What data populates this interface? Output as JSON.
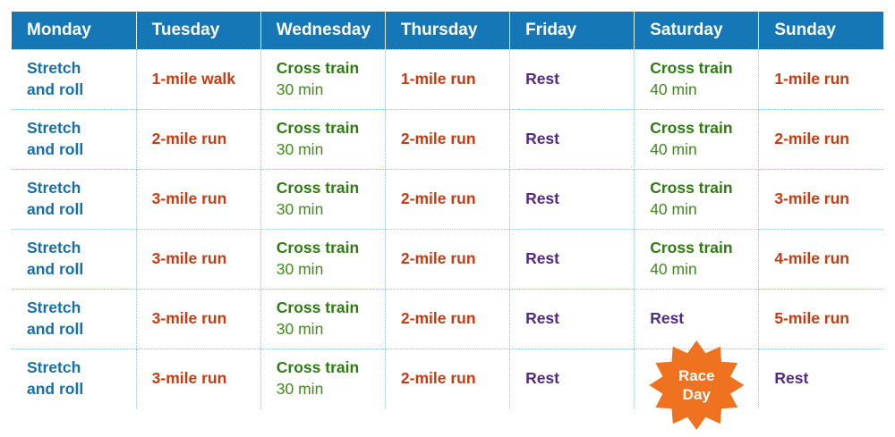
{
  "colors": {
    "header_bg": "#1577b5",
    "header_text": "#ffffff",
    "grid": "#8fc5ea",
    "stretch": "#1470ad",
    "run": "#c83a10",
    "cross": "#2e7d12",
    "cross_sub": "#3f8a1a",
    "rest": "#522a86",
    "star": "#ee7220",
    "star_text": "#ffffff"
  },
  "schedule": {
    "days": [
      "Monday",
      "Tuesday",
      "Wednesday",
      "Thursday",
      "Friday",
      "Saturday",
      "Sunday"
    ],
    "weeks": [
      {
        "cells": [
          {
            "type": "stretch",
            "lines": [
              "Stretch",
              "and roll"
            ]
          },
          {
            "type": "walk",
            "lines": [
              "1-mile walk"
            ]
          },
          {
            "type": "cross",
            "lines": [
              "Cross train",
              "30 min"
            ]
          },
          {
            "type": "run",
            "lines": [
              "1-mile run"
            ]
          },
          {
            "type": "rest",
            "lines": [
              "Rest"
            ]
          },
          {
            "type": "cross",
            "lines": [
              "Cross train",
              "40 min"
            ]
          },
          {
            "type": "run",
            "lines": [
              "1-mile run"
            ]
          }
        ]
      },
      {
        "cells": [
          {
            "type": "stretch",
            "lines": [
              "Stretch",
              "and roll"
            ]
          },
          {
            "type": "run",
            "lines": [
              "2-mile run"
            ]
          },
          {
            "type": "cross",
            "lines": [
              "Cross train",
              "30 min"
            ]
          },
          {
            "type": "run",
            "lines": [
              "2-mile run"
            ]
          },
          {
            "type": "rest",
            "lines": [
              "Rest"
            ]
          },
          {
            "type": "cross",
            "lines": [
              "Cross train",
              "40 min"
            ]
          },
          {
            "type": "run",
            "lines": [
              "2-mile run"
            ]
          }
        ]
      },
      {
        "cells": [
          {
            "type": "stretch",
            "lines": [
              "Stretch",
              "and roll"
            ]
          },
          {
            "type": "run",
            "lines": [
              "3-mile run"
            ]
          },
          {
            "type": "cross",
            "lines": [
              "Cross train",
              "30 min"
            ]
          },
          {
            "type": "run",
            "lines": [
              "2-mile run"
            ]
          },
          {
            "type": "rest",
            "lines": [
              "Rest"
            ]
          },
          {
            "type": "cross",
            "lines": [
              "Cross train",
              "40 min"
            ]
          },
          {
            "type": "run",
            "lines": [
              "3-mile run"
            ]
          }
        ]
      },
      {
        "cells": [
          {
            "type": "stretch",
            "lines": [
              "Stretch",
              "and roll"
            ]
          },
          {
            "type": "run",
            "lines": [
              "3-mile run"
            ]
          },
          {
            "type": "cross",
            "lines": [
              "Cross train",
              "30 min"
            ]
          },
          {
            "type": "run",
            "lines": [
              "2-mile run"
            ]
          },
          {
            "type": "rest",
            "lines": [
              "Rest"
            ]
          },
          {
            "type": "cross",
            "lines": [
              "Cross train",
              "40 min"
            ]
          },
          {
            "type": "run",
            "lines": [
              "4-mile run"
            ]
          }
        ]
      },
      {
        "cells": [
          {
            "type": "stretch",
            "lines": [
              "Stretch",
              "and roll"
            ]
          },
          {
            "type": "run",
            "lines": [
              "3-mile run"
            ]
          },
          {
            "type": "cross",
            "lines": [
              "Cross train",
              "30 min"
            ]
          },
          {
            "type": "run",
            "lines": [
              "2-mile run"
            ]
          },
          {
            "type": "rest",
            "lines": [
              "Rest"
            ]
          },
          {
            "type": "rest",
            "lines": [
              "Rest"
            ]
          },
          {
            "type": "run",
            "lines": [
              "5-mile run"
            ]
          }
        ]
      },
      {
        "cells": [
          {
            "type": "stretch",
            "lines": [
              "Stretch",
              "and roll"
            ]
          },
          {
            "type": "run",
            "lines": [
              "3-mile run"
            ]
          },
          {
            "type": "cross",
            "lines": [
              "Cross train",
              "30 min"
            ]
          },
          {
            "type": "run",
            "lines": [
              "2-mile run"
            ]
          },
          {
            "type": "rest",
            "lines": [
              "Rest"
            ]
          },
          {
            "type": "race",
            "lines": [
              "Race",
              "Day"
            ]
          },
          {
            "type": "rest",
            "lines": [
              "Rest"
            ]
          }
        ]
      }
    ]
  }
}
